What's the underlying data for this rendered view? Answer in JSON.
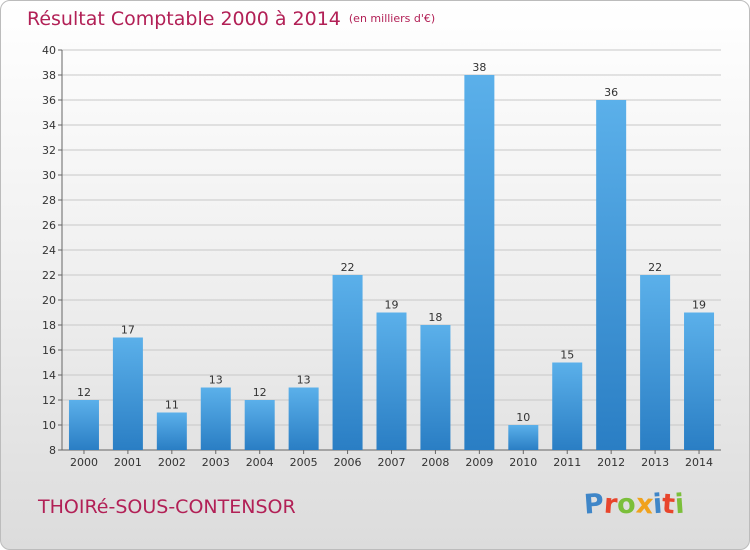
{
  "title": "Résultat Comptable 2000 à 2014",
  "subtitle": "(en milliers d'€)",
  "commune": "THOIRé-SOUS-CONTENSOR",
  "logo": {
    "text": "Proxiti",
    "letters": [
      {
        "ch": "P",
        "color": "#3f86c8"
      },
      {
        "ch": "r",
        "color": "#e8452c"
      },
      {
        "ch": "o",
        "color": "#7bbf3a"
      },
      {
        "ch": "x",
        "color": "#f0a21d"
      },
      {
        "ch": "i",
        "color": "#3f86c8"
      },
      {
        "ch": "t",
        "color": "#e8452c"
      },
      {
        "ch": "i",
        "color": "#7bbf3a"
      }
    ]
  },
  "colors": {
    "title": "#b22056",
    "bar_light": "#5bb0ea",
    "bar_dark": "#2a7ec4",
    "grid": "#c8c8c8",
    "axis_text": "#333333"
  },
  "chart_data": {
    "type": "bar",
    "title": "Résultat Comptable 2000 à 2014",
    "subtitle": "(en milliers d'€)",
    "xlabel": "",
    "ylabel": "",
    "categories": [
      "2000",
      "2001",
      "2002",
      "2003",
      "2004",
      "2005",
      "2006",
      "2007",
      "2008",
      "2009",
      "2010",
      "2011",
      "2012",
      "2013",
      "2014"
    ],
    "values": [
      12,
      17,
      11,
      13,
      12,
      13,
      22,
      19,
      18,
      38,
      10,
      15,
      36,
      22,
      19
    ],
    "value_labels": [
      "12",
      "17",
      "11",
      "13",
      "12",
      "13",
      "22",
      "19",
      "18",
      "38",
      "10",
      "15",
      "36",
      "22",
      "19"
    ],
    "ylim": [
      8,
      40
    ],
    "yticks": [
      8,
      10,
      12,
      14,
      16,
      18,
      20,
      22,
      24,
      26,
      28,
      30,
      32,
      34,
      36,
      38,
      40
    ],
    "ytick_labels": [
      "8",
      "10",
      "12",
      "14",
      "16",
      "18",
      "20",
      "22",
      "24",
      "26",
      "28",
      "30",
      "32",
      "34",
      "36",
      "38",
      "40"
    ],
    "grid": true,
    "legend": "none"
  }
}
